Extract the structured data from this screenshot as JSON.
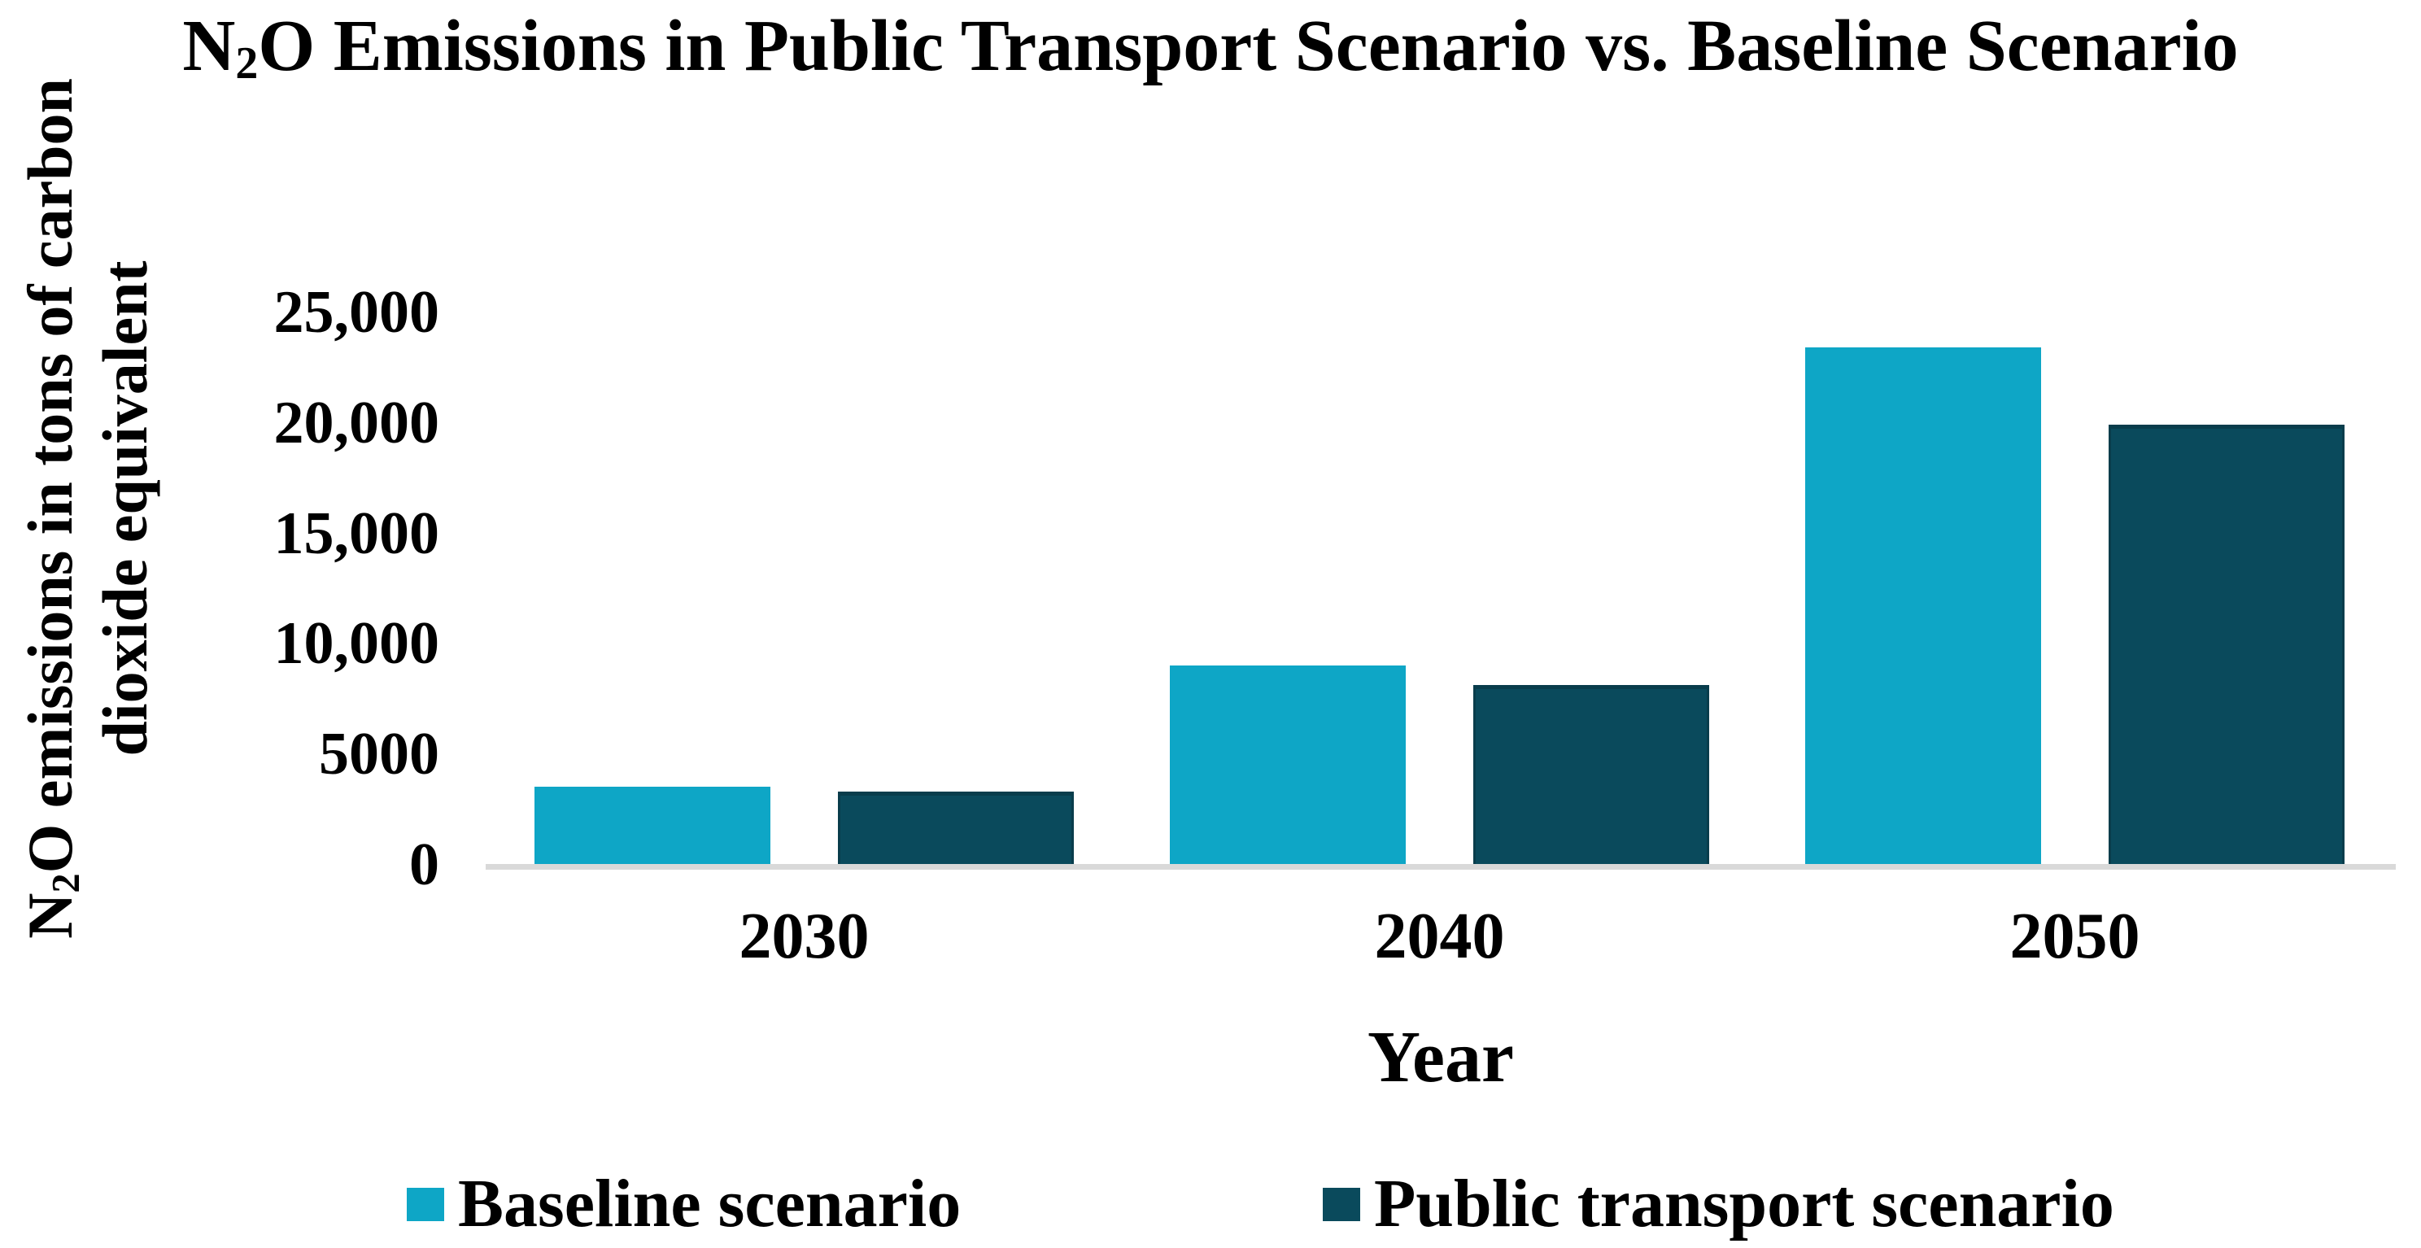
{
  "chart_data": {
    "type": "bar",
    "title": "N2O Emissions in Public Transport Scenario vs. Baseline Scenario",
    "title_parts": {
      "pre": "N",
      "sub": "2",
      "rest": "O Emissions in Public Transport Scenario vs. Baseline Scenario"
    },
    "ylabel": "N2O emissions in tons of carbon dioxide equivalent",
    "ylabel_parts": {
      "line1_pre": "N",
      "line1_sub": "2",
      "line1_rest": "O emissions in tons of carbon",
      "line2": "dioxide equivalent"
    },
    "xlabel": "Year",
    "categories": [
      "2030",
      "2040",
      "2050"
    ],
    "series": [
      {
        "name": "Baseline scenario",
        "color": "#0EA6C6",
        "values": [
          3600,
          9100,
          23500
        ]
      },
      {
        "name": "Public transport scenario",
        "color": "#0A4A5C",
        "values": [
          3400,
          8200,
          20000
        ]
      }
    ],
    "ylim": [
      0,
      25000
    ],
    "yticks": [
      {
        "value": 25000,
        "label": "25,000"
      },
      {
        "value": 20000,
        "label": "20,000"
      },
      {
        "value": 15000,
        "label": "15,000"
      },
      {
        "value": 10000,
        "label": "10,000"
      },
      {
        "value": 5000,
        "label": "5000"
      },
      {
        "value": 0,
        "label": "0"
      }
    ],
    "grid": false,
    "legend_position": "bottom",
    "colors": {
      "axis_line": "#d9d9d9",
      "text": "#000000",
      "background": "#ffffff"
    }
  }
}
